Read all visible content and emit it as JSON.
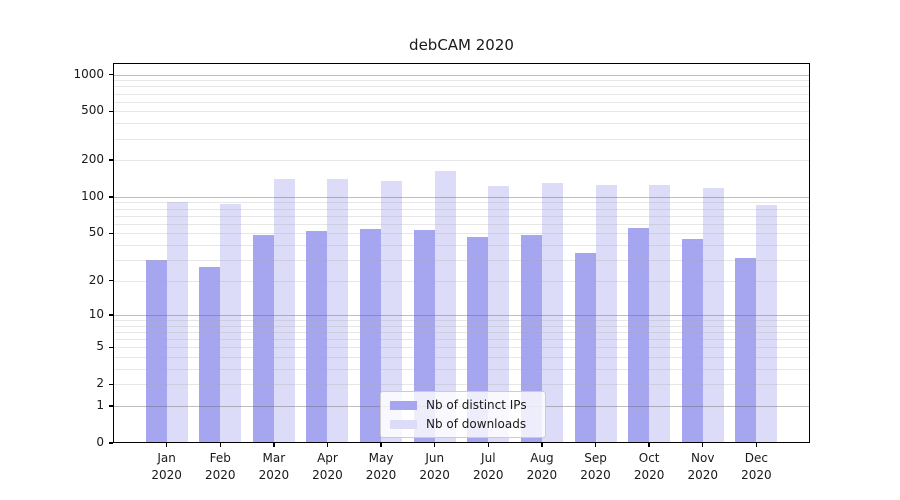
{
  "chart_data": {
    "type": "bar",
    "title": "debCAM 2020",
    "categories": [
      "Jan",
      "Feb",
      "Mar",
      "Apr",
      "May",
      "Jun",
      "Jul",
      "Aug",
      "Sep",
      "Oct",
      "Nov",
      "Dec"
    ],
    "year_label": "2020",
    "series": [
      {
        "name": "Nb of distinct IPs",
        "color": "#a5a5f0",
        "values": [
          30,
          26,
          48,
          52,
          54,
          53,
          47,
          48,
          34,
          55,
          45,
          31
        ]
      },
      {
        "name": "Nb of downloads",
        "color": "#dcdcf9",
        "values": [
          90,
          87,
          140,
          140,
          135,
          163,
          122,
          130,
          124,
          124,
          119,
          86
        ]
      }
    ],
    "yscale": "log10(1+y)",
    "yticks": [
      0,
      1,
      2,
      5,
      10,
      20,
      50,
      100,
      200,
      500,
      1000
    ],
    "ylim": [
      0,
      1240
    ],
    "grid": "horizontal major at 1,10,100,1000 plus faint log minors",
    "legend_position": "inside bottom-center",
    "axis_color": "#000000",
    "background_color": "#ffffff"
  }
}
